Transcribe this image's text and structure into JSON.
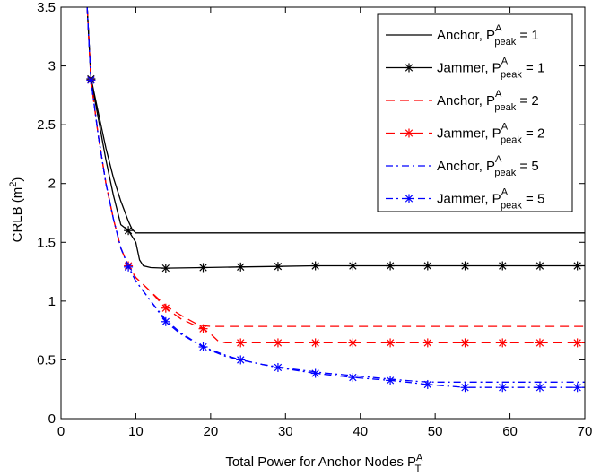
{
  "chart_data": {
    "type": "line",
    "xlabel": {
      "text": "Total Power for Anchor Nodes P",
      "sub": "T",
      "sup": "A"
    },
    "ylabel": {
      "text": "CRLB (m",
      "sup": "2",
      "tail": ")"
    },
    "xlim": [
      0,
      70
    ],
    "ylim": [
      0,
      3.5
    ],
    "xticks": [
      0,
      10,
      20,
      30,
      40,
      50,
      60,
      70
    ],
    "yticks": [
      0,
      0.5,
      1,
      1.5,
      2,
      2.5,
      3,
      3.5
    ],
    "xtick_labels": [
      "0",
      "10",
      "20",
      "30",
      "40",
      "50",
      "60",
      "70"
    ],
    "ytick_labels": [
      "0",
      "0.5",
      "1",
      "1.5",
      "2",
      "2.5",
      "3",
      "3.5"
    ],
    "grid": false,
    "legend_position": "top-right",
    "series": [
      {
        "name": "Anchor, P^A_peak = 1",
        "legend": {
          "prefix": "Anchor, P",
          "sup": "A",
          "sub": "peak",
          "suffix": " = 1"
        },
        "color": "#000000",
        "dash": "solid",
        "marker": "none",
        "points": [
          [
            3.5,
            3.5
          ],
          [
            4,
            2.9
          ],
          [
            5,
            2.6
          ],
          [
            6,
            2.3
          ],
          [
            7,
            2.05
          ],
          [
            8,
            1.85
          ],
          [
            9,
            1.68
          ],
          [
            9.5,
            1.61
          ],
          [
            10,
            1.58
          ],
          [
            70,
            1.58
          ]
        ]
      },
      {
        "name": "Jammer, P^A_peak = 1",
        "legend": {
          "prefix": "Jammer, P",
          "sup": "A",
          "sub": "peak",
          "suffix": " = 1"
        },
        "color": "#000000",
        "dash": "solid",
        "marker": "star",
        "points": [
          [
            3.5,
            3.5
          ],
          [
            4,
            2.89
          ],
          [
            5,
            2.55
          ],
          [
            6,
            2.2
          ],
          [
            7,
            1.9
          ],
          [
            8,
            1.65
          ],
          [
            9,
            1.6
          ],
          [
            10,
            1.5
          ],
          [
            10.5,
            1.35
          ],
          [
            11,
            1.3
          ],
          [
            12,
            1.285
          ],
          [
            14,
            1.28
          ],
          [
            19,
            1.285
          ],
          [
            24,
            1.29
          ],
          [
            29,
            1.295
          ],
          [
            34,
            1.3
          ],
          [
            39,
            1.3
          ],
          [
            44,
            1.3
          ],
          [
            49,
            1.3
          ],
          [
            54,
            1.3
          ],
          [
            59,
            1.3
          ],
          [
            64,
            1.3
          ],
          [
            70,
            1.3
          ]
        ],
        "marker_x": [
          4,
          9,
          14,
          19,
          24,
          29,
          34,
          39,
          44,
          49,
          54,
          59,
          64,
          69
        ]
      },
      {
        "name": "Anchor, P^A_peak = 2",
        "legend": {
          "prefix": "Anchor, P",
          "sup": "A",
          "sub": "peak",
          "suffix": " = 2"
        },
        "color": "#ff0000",
        "dash": "long-dash",
        "marker": "none",
        "points": [
          [
            3.5,
            3.5
          ],
          [
            4,
            2.88
          ],
          [
            5,
            2.4
          ],
          [
            6,
            2.0
          ],
          [
            7,
            1.7
          ],
          [
            8,
            1.45
          ],
          [
            9,
            1.3
          ],
          [
            10,
            1.2
          ],
          [
            12,
            1.08
          ],
          [
            14,
            0.96
          ],
          [
            16,
            0.88
          ],
          [
            18,
            0.81
          ],
          [
            19,
            0.79
          ],
          [
            20,
            0.785
          ],
          [
            70,
            0.785
          ]
        ]
      },
      {
        "name": "Jammer, P^A_peak = 2",
        "legend": {
          "prefix": "Jammer, P",
          "sup": "A",
          "sub": "peak",
          "suffix": " = 2"
        },
        "color": "#ff0000",
        "dash": "long-dash",
        "marker": "star",
        "points": [
          [
            3.5,
            3.5
          ],
          [
            4,
            2.88
          ],
          [
            5,
            2.4
          ],
          [
            6,
            2.0
          ],
          [
            7,
            1.7
          ],
          [
            8,
            1.45
          ],
          [
            9,
            1.3
          ],
          [
            10,
            1.2
          ],
          [
            12,
            1.08
          ],
          [
            14,
            0.94
          ],
          [
            16,
            0.85
          ],
          [
            18,
            0.79
          ],
          [
            19,
            0.765
          ],
          [
            20,
            0.72
          ],
          [
            21,
            0.66
          ],
          [
            22,
            0.645
          ],
          [
            24,
            0.645
          ],
          [
            70,
            0.645
          ]
        ],
        "marker_x": [
          4,
          9,
          14,
          19,
          24,
          29,
          34,
          39,
          44,
          49,
          54,
          59,
          64,
          69
        ]
      },
      {
        "name": "Anchor, P^A_peak = 5",
        "legend": {
          "prefix": "Anchor, P",
          "sup": "A",
          "sub": "peak",
          "suffix": " = 5"
        },
        "color": "#0000ff",
        "dash": "dash-dot",
        "marker": "none",
        "points": [
          [
            3.5,
            3.5
          ],
          [
            4,
            2.88
          ],
          [
            5,
            2.4
          ],
          [
            6,
            2.0
          ],
          [
            7,
            1.7
          ],
          [
            8,
            1.45
          ],
          [
            9,
            1.3
          ],
          [
            10,
            1.17
          ],
          [
            12,
            1.0
          ],
          [
            14,
            0.84
          ],
          [
            16,
            0.73
          ],
          [
            18,
            0.65
          ],
          [
            20,
            0.58
          ],
          [
            22,
            0.53
          ],
          [
            24,
            0.5
          ],
          [
            27,
            0.46
          ],
          [
            30,
            0.43
          ],
          [
            35,
            0.39
          ],
          [
            40,
            0.36
          ],
          [
            45,
            0.33
          ],
          [
            48,
            0.315
          ],
          [
            50,
            0.31
          ],
          [
            70,
            0.31
          ]
        ]
      },
      {
        "name": "Jammer, P^A_peak = 5",
        "legend": {
          "prefix": "Jammer, P",
          "sup": "A",
          "sub": "peak",
          "suffix": " = 5"
        },
        "color": "#0000ff",
        "dash": "dash-dot",
        "marker": "star",
        "points": [
          [
            3.5,
            3.5
          ],
          [
            4,
            2.88
          ],
          [
            5,
            2.4
          ],
          [
            6,
            2.0
          ],
          [
            7,
            1.7
          ],
          [
            8,
            1.45
          ],
          [
            9,
            1.29
          ],
          [
            10,
            1.17
          ],
          [
            12,
            1.0
          ],
          [
            14,
            0.825
          ],
          [
            16,
            0.72
          ],
          [
            19,
            0.61
          ],
          [
            22,
            0.54
          ],
          [
            24,
            0.5
          ],
          [
            27,
            0.46
          ],
          [
            29,
            0.435
          ],
          [
            34,
            0.385
          ],
          [
            39,
            0.35
          ],
          [
            44,
            0.325
          ],
          [
            47,
            0.305
          ],
          [
            49,
            0.29
          ],
          [
            52,
            0.275
          ],
          [
            54,
            0.265
          ],
          [
            70,
            0.265
          ]
        ],
        "marker_x": [
          4,
          9,
          14,
          19,
          24,
          29,
          34,
          39,
          44,
          49,
          54,
          59,
          64,
          69
        ]
      }
    ]
  }
}
